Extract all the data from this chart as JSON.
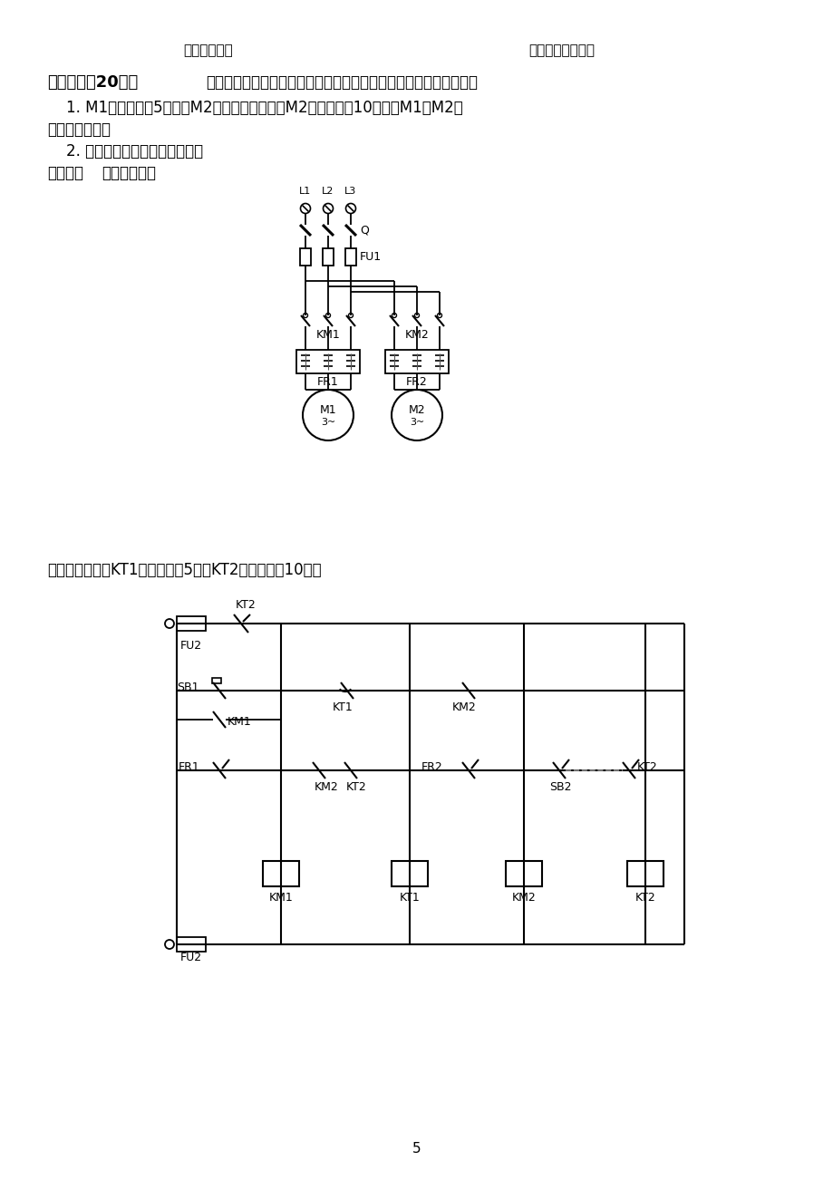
{
  "bg_color": "#ffffff",
  "page_num": "5",
  "title_left": "主电路原理图",
  "title_right": "控制电路的原理图",
  "heading_bold": "六、（满分20分）",
  "heading_rest": "试设计两台三相异步电动机的顺序起停的控制线路。具体要求如下：",
  "line1": "    1. M1电动机启动5秒后，M2电动机自行起动；M2电动机停止10秒后，M1、M2电",
  "line2": "动机全部停止；",
  "line3": "    2. 有短路保护、过载保护功能。",
  "line4_bold": "【解】：",
  "line4_rest": "主电路如下：",
  "ctrl_text": "控制电路如下：KT1延时时间为5秒，KT2延时时间为10秒。"
}
